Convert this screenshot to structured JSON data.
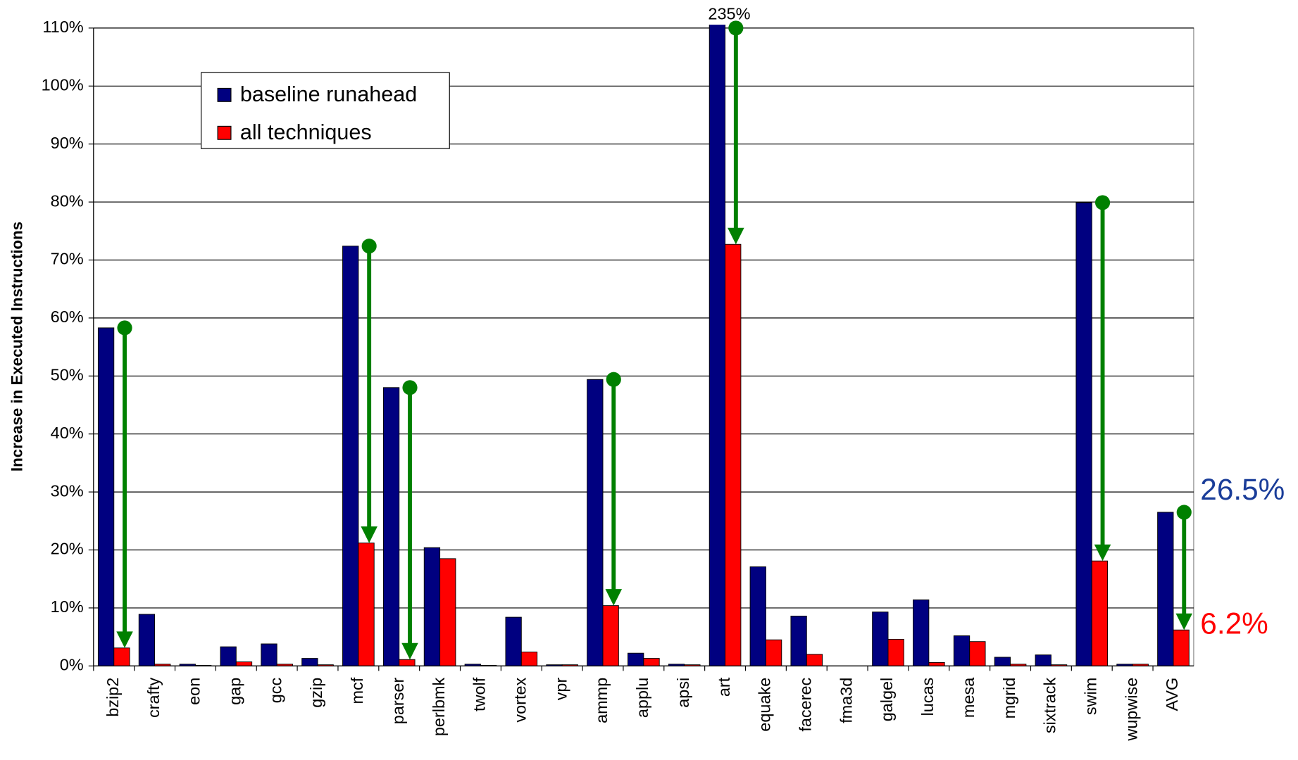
{
  "chart_data": {
    "type": "bar",
    "y_label": "Increase in Executed Instructions",
    "categories": [
      "bzip2",
      "crafty",
      "eon",
      "gap",
      "gcc",
      "gzip",
      "mcf",
      "parser",
      "perlbmk",
      "twolf",
      "vortex",
      "vpr",
      "ammp",
      "applu",
      "apsi",
      "art",
      "equake",
      "facerec",
      "fma3d",
      "galgel",
      "lucas",
      "mesa",
      "mgrid",
      "sixtrack",
      "swim",
      "wupwise",
      "AVG"
    ],
    "series": [
      {
        "name": "baseline runahead",
        "color": "#000080",
        "values": [
          58.3,
          8.9,
          0.3,
          3.3,
          3.8,
          1.3,
          72.4,
          48.0,
          20.4,
          0.3,
          8.4,
          0.2,
          49.4,
          2.2,
          0.3,
          235,
          17.1,
          8.6,
          0,
          9.3,
          11.4,
          5.2,
          1.5,
          1.9,
          79.9,
          0.3,
          26.5
        ],
        "value_labels": [
          null,
          null,
          null,
          null,
          null,
          null,
          null,
          null,
          null,
          null,
          null,
          null,
          null,
          null,
          null,
          "235%",
          null,
          null,
          null,
          null,
          null,
          null,
          null,
          null,
          null,
          null,
          "26.5%"
        ]
      },
      {
        "name": "all techniques",
        "color": "#ff0000",
        "values": [
          3.1,
          0.3,
          0.1,
          0.7,
          0.3,
          0.2,
          21.2,
          1.1,
          18.5,
          0.1,
          2.4,
          0.2,
          10.4,
          1.3,
          0.2,
          72.7,
          4.5,
          2.0,
          0,
          4.6,
          0.6,
          4.2,
          0.3,
          0.2,
          18.1,
          0.3,
          6.2
        ],
        "value_labels": [
          null,
          null,
          null,
          null,
          null,
          null,
          null,
          null,
          null,
          null,
          null,
          null,
          null,
          null,
          null,
          null,
          null,
          null,
          null,
          null,
          null,
          null,
          null,
          null,
          null,
          null,
          "6.2%"
        ]
      }
    ],
    "arrow_indices": [
      0,
      6,
      7,
      12,
      15,
      24,
      26
    ],
    "arrow_color": "#008000",
    "ylim": [
      0,
      110
    ],
    "yticks": [
      {
        "value": 0,
        "label": "0%"
      },
      {
        "value": 10,
        "label": "10%"
      },
      {
        "value": 20,
        "label": "20%"
      },
      {
        "value": 30,
        "label": "30%"
      },
      {
        "value": 40,
        "label": "40%"
      },
      {
        "value": 50,
        "label": "50%"
      },
      {
        "value": 60,
        "label": "60%"
      },
      {
        "value": 70,
        "label": "70%"
      },
      {
        "value": 80,
        "label": "80%"
      },
      {
        "value": 90,
        "label": "90%"
      },
      {
        "value": 100,
        "label": "100%"
      },
      {
        "value": 110,
        "label": "110%"
      }
    ],
    "grid": true
  }
}
